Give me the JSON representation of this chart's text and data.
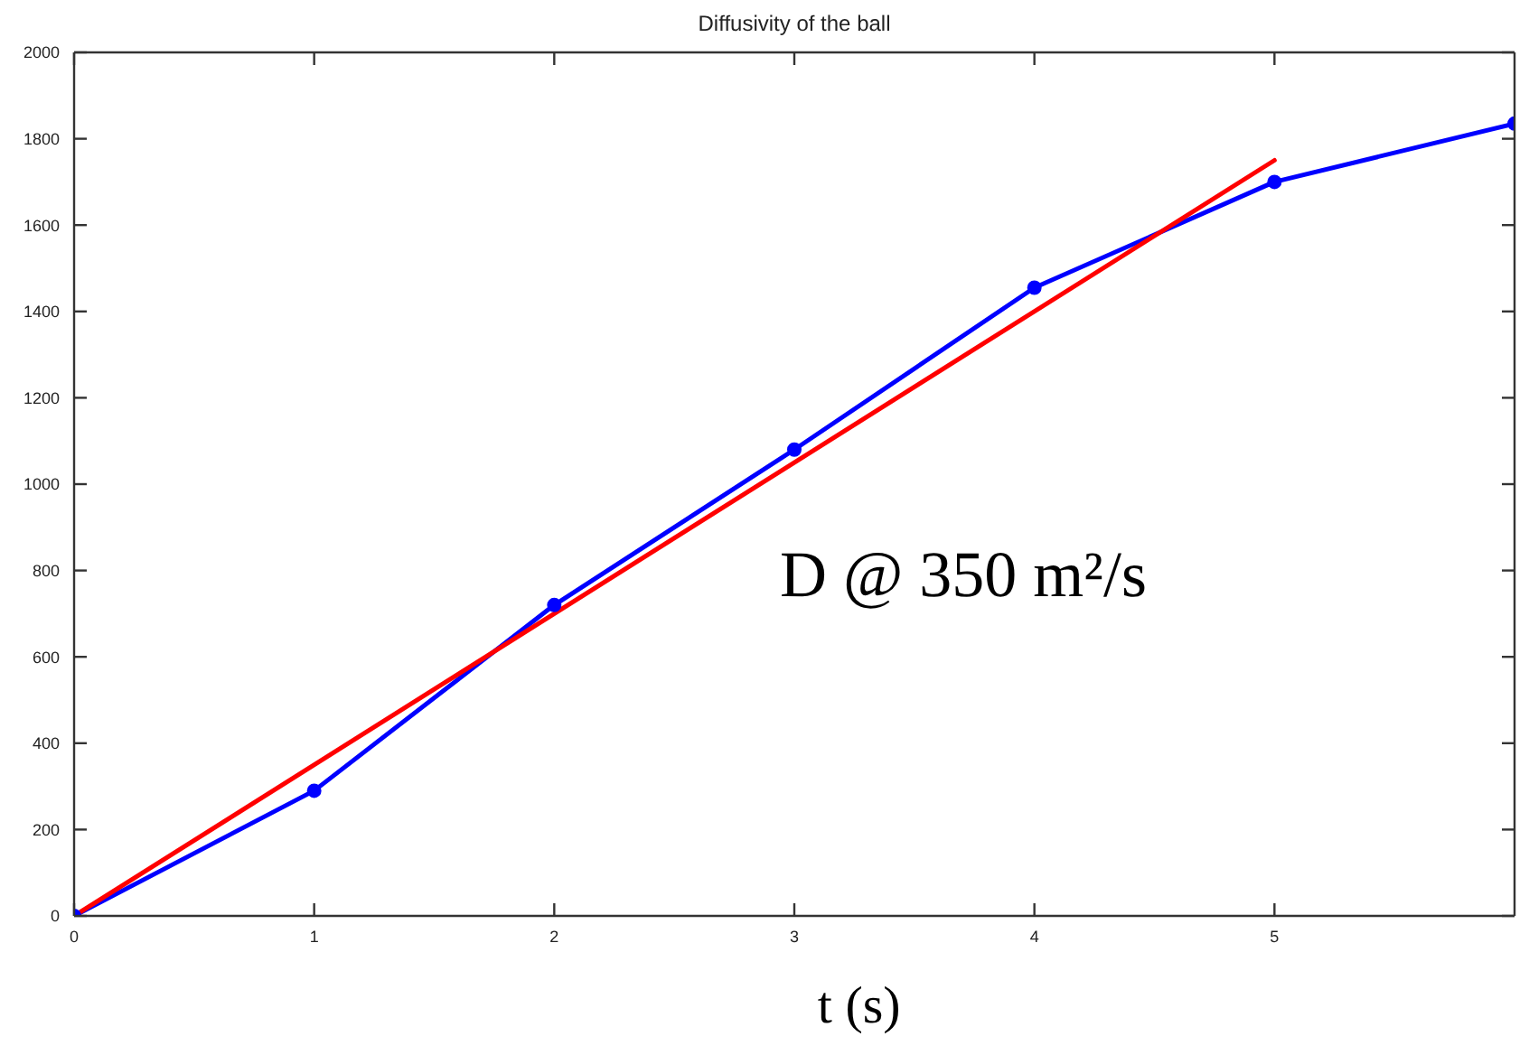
{
  "chart_data": {
    "type": "line",
    "title": "Diffusivity of the ball",
    "xlabel": "t (s)",
    "annotations": [
      "D @ 350 m²/s"
    ],
    "series": [
      {
        "color": "#0000ff",
        "x": [
          0,
          1,
          2,
          3,
          4,
          5,
          6
        ],
        "values": [
          0,
          290,
          720,
          1080,
          1455,
          1700,
          1835
        ]
      },
      {
        "type": "line",
        "color": "#ff0000",
        "x": [
          0,
          5
        ],
        "values": [
          0,
          1750
        ],
        "marker": "none"
      }
    ],
    "xlim": [
      0,
      6
    ],
    "xticks": [
      0,
      1,
      2,
      3,
      4,
      5
    ],
    "ylim": [
      0,
      2000
    ],
    "yticks": [
      0,
      200,
      400,
      600,
      800,
      1000,
      1200,
      1400,
      1600,
      1800,
      2000
    ],
    "marker": "circle"
  }
}
